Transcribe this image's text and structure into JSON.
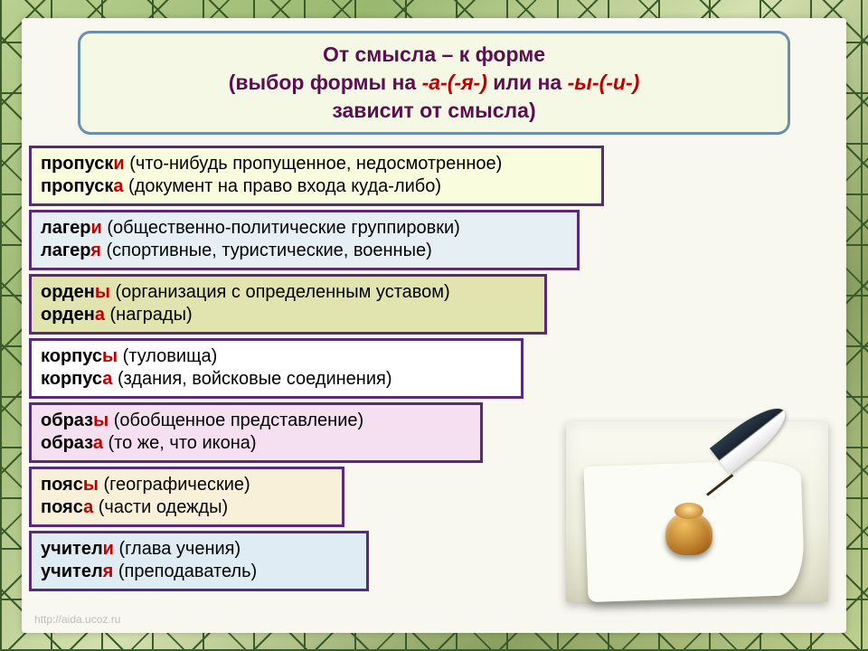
{
  "title": {
    "border_color": "#6a8fae",
    "bg_color": "#f4f8e4",
    "text_color": "#5a0f4f",
    "line1_a": "От смысла – к форме",
    "line2_a": "(выбор формы на ",
    "line2_hl1": "-а-(-я-)",
    "line2_b": " или на ",
    "line2_hl2": "-ы-(-и-)",
    "line3": "зависит от смысла)"
  },
  "rows": [
    {
      "bg": "bg-yellow",
      "border": "#5a2a7a",
      "w1a": "пропуск",
      "w1hl": "и",
      "d1": " (что-нибудь пропущенное, недосмотренное)",
      "w2a": "пропуск",
      "w2hl": "а",
      "d2": " (документ на право входа куда-либо)"
    },
    {
      "bg": "bg-blue",
      "border": "#5a2a7a",
      "w1a": "лагер",
      "w1hl": "и",
      "d1": " (общественно-политические группировки)",
      "w2a": "лагер",
      "w2hl": "я",
      "d2": " (спортивные, туристические, военные)"
    },
    {
      "bg": "bg-olive",
      "border": "#5a2a7a",
      "w1a": "орден",
      "w1hl": "ы",
      "d1": " (организация с определенным уставом)",
      "w2a": "орден",
      "w2hl": "а",
      "d2": " (награды)"
    },
    {
      "bg": "bg-white",
      "border": "#5a2a7a",
      "w1a": "корпус",
      "w1hl": "ы",
      "d1": " (туловища)",
      "w2a": "корпус",
      "w2hl": "а",
      "d2": " (здания, войсковые соединения)"
    },
    {
      "bg": "bg-pink",
      "border": "#5a2a7a",
      "w1a": "образ",
      "w1hl": "ы",
      "d1": " (обобщенное представление)",
      "w2a": "образ",
      "w2hl": "а",
      "d2": " (то же, что икона)"
    },
    {
      "bg": "bg-peach",
      "border": "#5a2a7a",
      "w1a": "пояс",
      "w1hl": "ы",
      "d1": " (географические)",
      "w2a": "пояс",
      "w2hl": "а",
      "d2": " (части одежды)"
    },
    {
      "bg": "bg-lightblue",
      "border": "#5a2a7a",
      "w1a": "учител",
      "w1hl": "и",
      "d1": " (глава учения)",
      "w2a": "учител",
      "w2hl": "я",
      "d2": " (преподаватель)"
    }
  ],
  "watermark": "http://aida.ucoz.ru",
  "colors": {
    "highlight": "#c00000",
    "title_text": "#5a0f4f",
    "panel_bg": "#f8f8f0"
  }
}
